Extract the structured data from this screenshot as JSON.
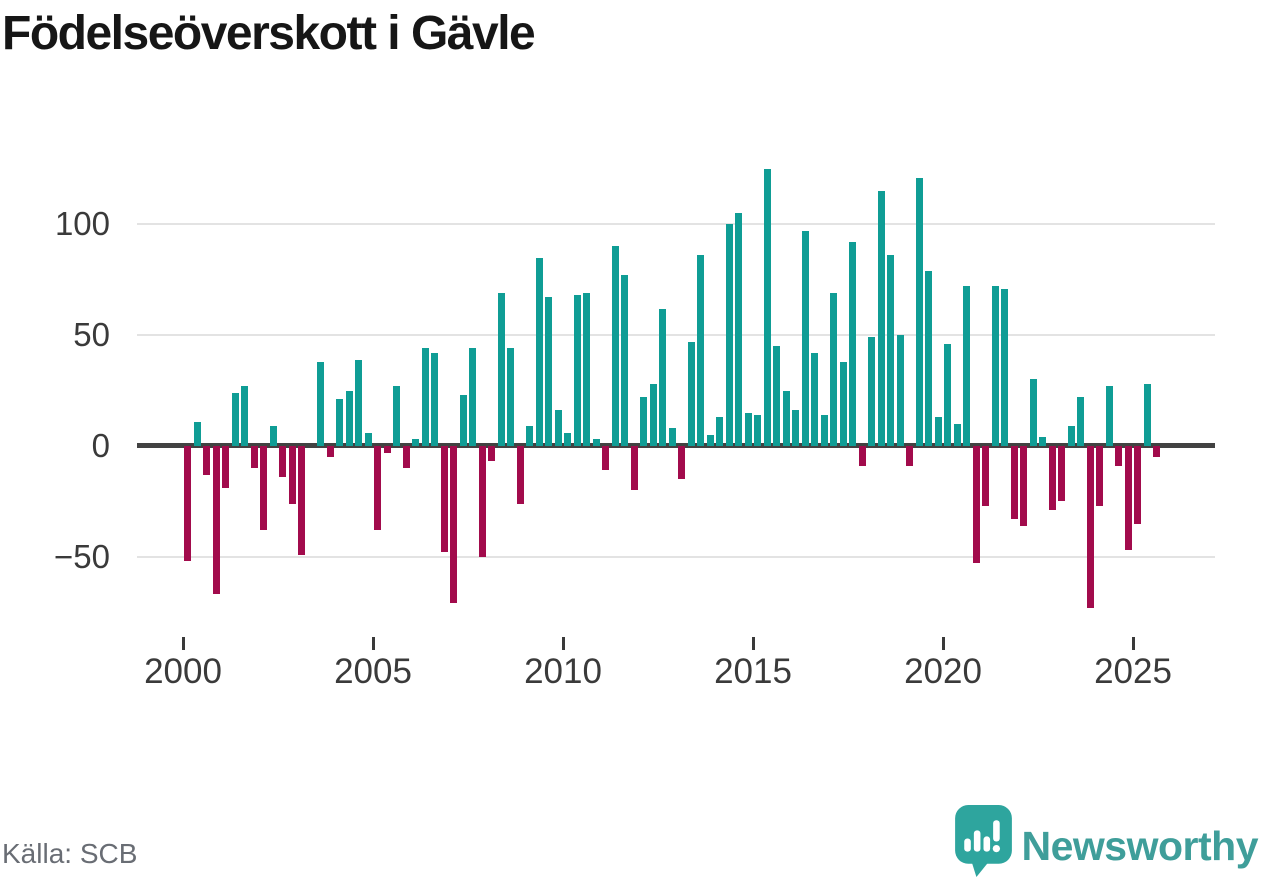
{
  "page": {
    "title": "Födelseöverskott i Gävle"
  },
  "footer": {
    "source": "Källa: SCB",
    "brand": "Newsworthy"
  },
  "colors": {
    "positive_bar": "#0f9d95",
    "negative_bar": "#a20b4c",
    "gridline": "#e3e3e3",
    "zero_line": "#424242",
    "brand_teal": "#3f9e9a",
    "icon_bubble_teal": "#2ea59e",
    "title_text": "#161616",
    "axis_text": "#3a3a3a",
    "source_text": "#696d74"
  },
  "chart_data": {
    "type": "bar",
    "title": "Födelseöverskott i Gävle",
    "xlabel": "",
    "ylabel": "",
    "ylim": [
      -78.5,
      133.5
    ],
    "grid": "horizontal",
    "legend": "none",
    "y_ticks": [
      {
        "label": "100",
        "value": 100
      },
      {
        "label": "50",
        "value": 50
      },
      {
        "label": "0",
        "value": 0
      },
      {
        "label": "−50",
        "value": -50
      }
    ],
    "y_gridlines": [
      100,
      50,
      -50
    ],
    "x_ticks": [
      {
        "label": "2000",
        "year": 2000
      },
      {
        "label": "2005",
        "year": 2005
      },
      {
        "label": "2010",
        "year": 2010
      },
      {
        "label": "2015",
        "year": 2015
      },
      {
        "label": "2020",
        "year": 2020
      },
      {
        "label": "2025",
        "year": 2025
      }
    ],
    "positive_color": "#0f9d95",
    "negative_color": "#a20b4c",
    "periods": [
      "2000-Q1",
      "2000-Q2",
      "2000-Q3",
      "2000-Q4",
      "2001-Q1",
      "2001-Q2",
      "2001-Q3",
      "2001-Q4",
      "2002-Q1",
      "2002-Q2",
      "2002-Q3",
      "2002-Q4",
      "2003-Q1",
      "2003-Q2",
      "2003-Q3",
      "2003-Q4",
      "2004-Q1",
      "2004-Q2",
      "2004-Q3",
      "2004-Q4",
      "2005-Q1",
      "2005-Q2",
      "2005-Q3",
      "2005-Q4",
      "2006-Q1",
      "2006-Q2",
      "2006-Q3",
      "2006-Q4",
      "2007-Q1",
      "2007-Q2",
      "2007-Q3",
      "2007-Q4",
      "2008-Q1",
      "2008-Q2",
      "2008-Q3",
      "2008-Q4",
      "2009-Q1",
      "2009-Q2",
      "2009-Q3",
      "2009-Q4",
      "2010-Q1",
      "2010-Q2",
      "2010-Q3",
      "2010-Q4",
      "2011-Q1",
      "2011-Q2",
      "2011-Q3",
      "2011-Q4",
      "2012-Q1",
      "2012-Q2",
      "2012-Q3",
      "2012-Q4",
      "2013-Q1",
      "2013-Q2",
      "2013-Q3",
      "2013-Q4",
      "2014-Q1",
      "2014-Q2",
      "2014-Q3",
      "2014-Q4",
      "2015-Q1",
      "2015-Q2",
      "2015-Q3",
      "2015-Q4",
      "2016-Q1",
      "2016-Q2",
      "2016-Q3",
      "2016-Q4",
      "2017-Q1",
      "2017-Q2",
      "2017-Q3",
      "2017-Q4",
      "2018-Q1",
      "2018-Q2",
      "2018-Q3",
      "2018-Q4",
      "2019-Q1",
      "2019-Q2",
      "2019-Q3",
      "2019-Q4",
      "2020-Q1",
      "2020-Q2",
      "2020-Q3",
      "2020-Q4",
      "2021-Q1",
      "2021-Q2",
      "2021-Q3",
      "2021-Q4",
      "2022-Q1",
      "2022-Q2",
      "2022-Q3",
      "2022-Q4",
      "2023-Q1",
      "2023-Q2",
      "2023-Q3",
      "2023-Q4",
      "2024-Q1",
      "2024-Q2",
      "2024-Q3",
      "2024-Q4",
      "2025-Q1",
      "2025-Q2",
      "2025-Q3"
    ],
    "values": [
      -52,
      11,
      -13,
      -67,
      -19,
      24,
      27,
      -10,
      -38,
      9,
      -14,
      -26,
      -49,
      0,
      38,
      -5,
      21,
      25,
      39,
      6,
      -38,
      -3,
      27,
      -10,
      3,
      44,
      42,
      -48,
      -71,
      23,
      44,
      -50,
      -7,
      69,
      44,
      -26,
      9,
      85,
      67,
      16,
      6,
      68,
      69,
      3,
      -11,
      90,
      77,
      -20,
      22,
      28,
      62,
      8,
      -15,
      47,
      86,
      5,
      13,
      100,
      105,
      15,
      14,
      125,
      45,
      25,
      16,
      97,
      42,
      14,
      69,
      38,
      92,
      -9,
      49,
      115,
      86,
      50,
      -9,
      121,
      79,
      13,
      46,
      10,
      72,
      -53,
      -27,
      72,
      71,
      -33,
      -36,
      30,
      4,
      -29,
      -25,
      9,
      22,
      -73,
      -27,
      27,
      -9,
      -47,
      -35,
      28,
      -5
    ]
  }
}
